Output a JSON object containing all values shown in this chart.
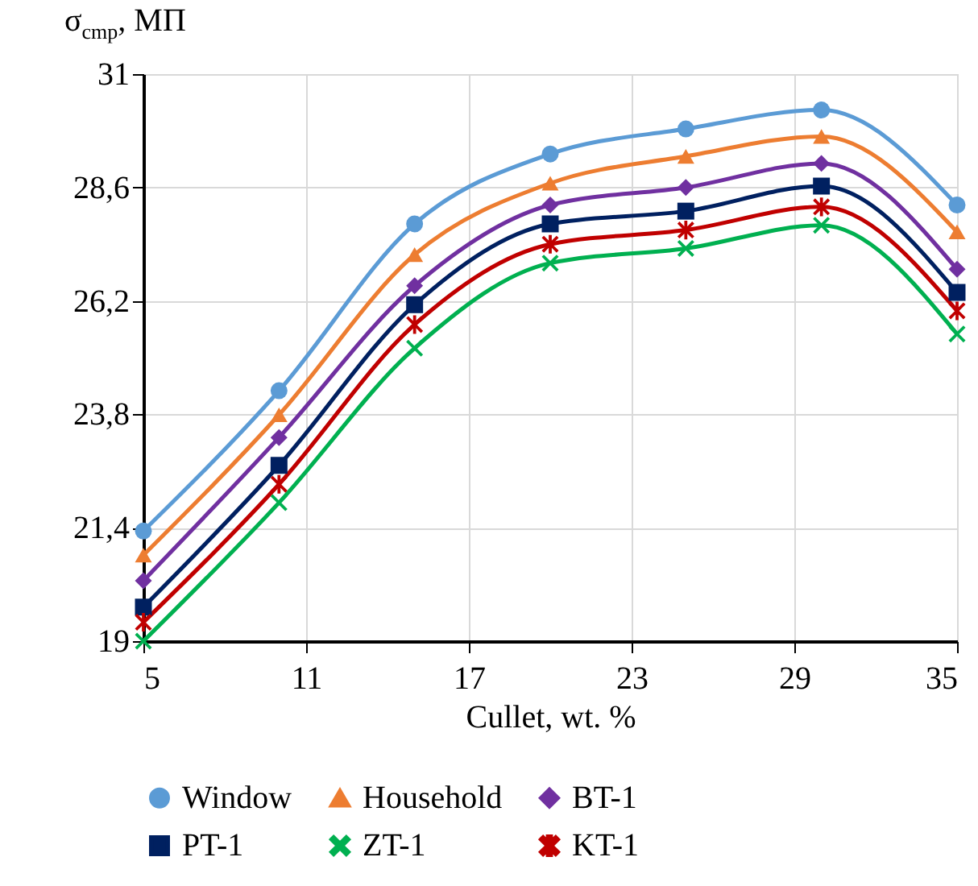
{
  "chart_data": {
    "type": "line",
    "xlabel": "Cullet, wt. %",
    "ylabel": "σ$_{cmp}$, МП",
    "x": [
      5,
      10,
      15,
      20,
      25,
      30,
      35
    ],
    "xlim": [
      5,
      35
    ],
    "xticks": [
      5,
      11,
      17,
      23,
      29,
      35
    ],
    "ylim": [
      19,
      31
    ],
    "yticks": [
      {
        "value": 19,
        "label": "19"
      },
      {
        "value": 21.4,
        "label": "21,4"
      },
      {
        "value": 23.8,
        "label": "23,8"
      },
      {
        "value": 26.2,
        "label": "26,2"
      },
      {
        "value": 28.6,
        "label": "28,6"
      },
      {
        "value": 31,
        "label": "31"
      }
    ],
    "grid": true,
    "legend": "bottom",
    "line_style": "solid",
    "series": [
      {
        "name": "Window",
        "color": "#5b9bd5",
        "marker": "circle",
        "values": [
          21.33,
          24.3,
          27.83,
          29.31,
          29.84,
          30.24,
          28.23
        ]
      },
      {
        "name": "Household",
        "color": "#ed7d31",
        "marker": "triangle",
        "values": [
          20.82,
          23.79,
          27.18,
          28.69,
          29.26,
          29.68,
          27.66
        ]
      },
      {
        "name": "BT-1",
        "color": "#7030a0",
        "marker": "diamond",
        "values": [
          20.28,
          23.31,
          26.52,
          28.23,
          28.6,
          29.11,
          26.87
        ]
      },
      {
        "name": "PT-1",
        "color": "#002060",
        "marker": "square",
        "values": [
          19.72,
          22.72,
          26.12,
          27.83,
          28.1,
          28.63,
          26.38
        ]
      },
      {
        "name": "ZT-1",
        "color": "#00b050",
        "marker": "cross",
        "values": [
          19.0,
          21.93,
          25.2,
          27.0,
          27.31,
          27.8,
          25.5
        ]
      },
      {
        "name": "KT-1",
        "color": "#c00000",
        "marker": "star",
        "values": [
          19.4,
          22.32,
          25.7,
          27.4,
          27.7,
          28.19,
          25.99
        ]
      }
    ]
  }
}
